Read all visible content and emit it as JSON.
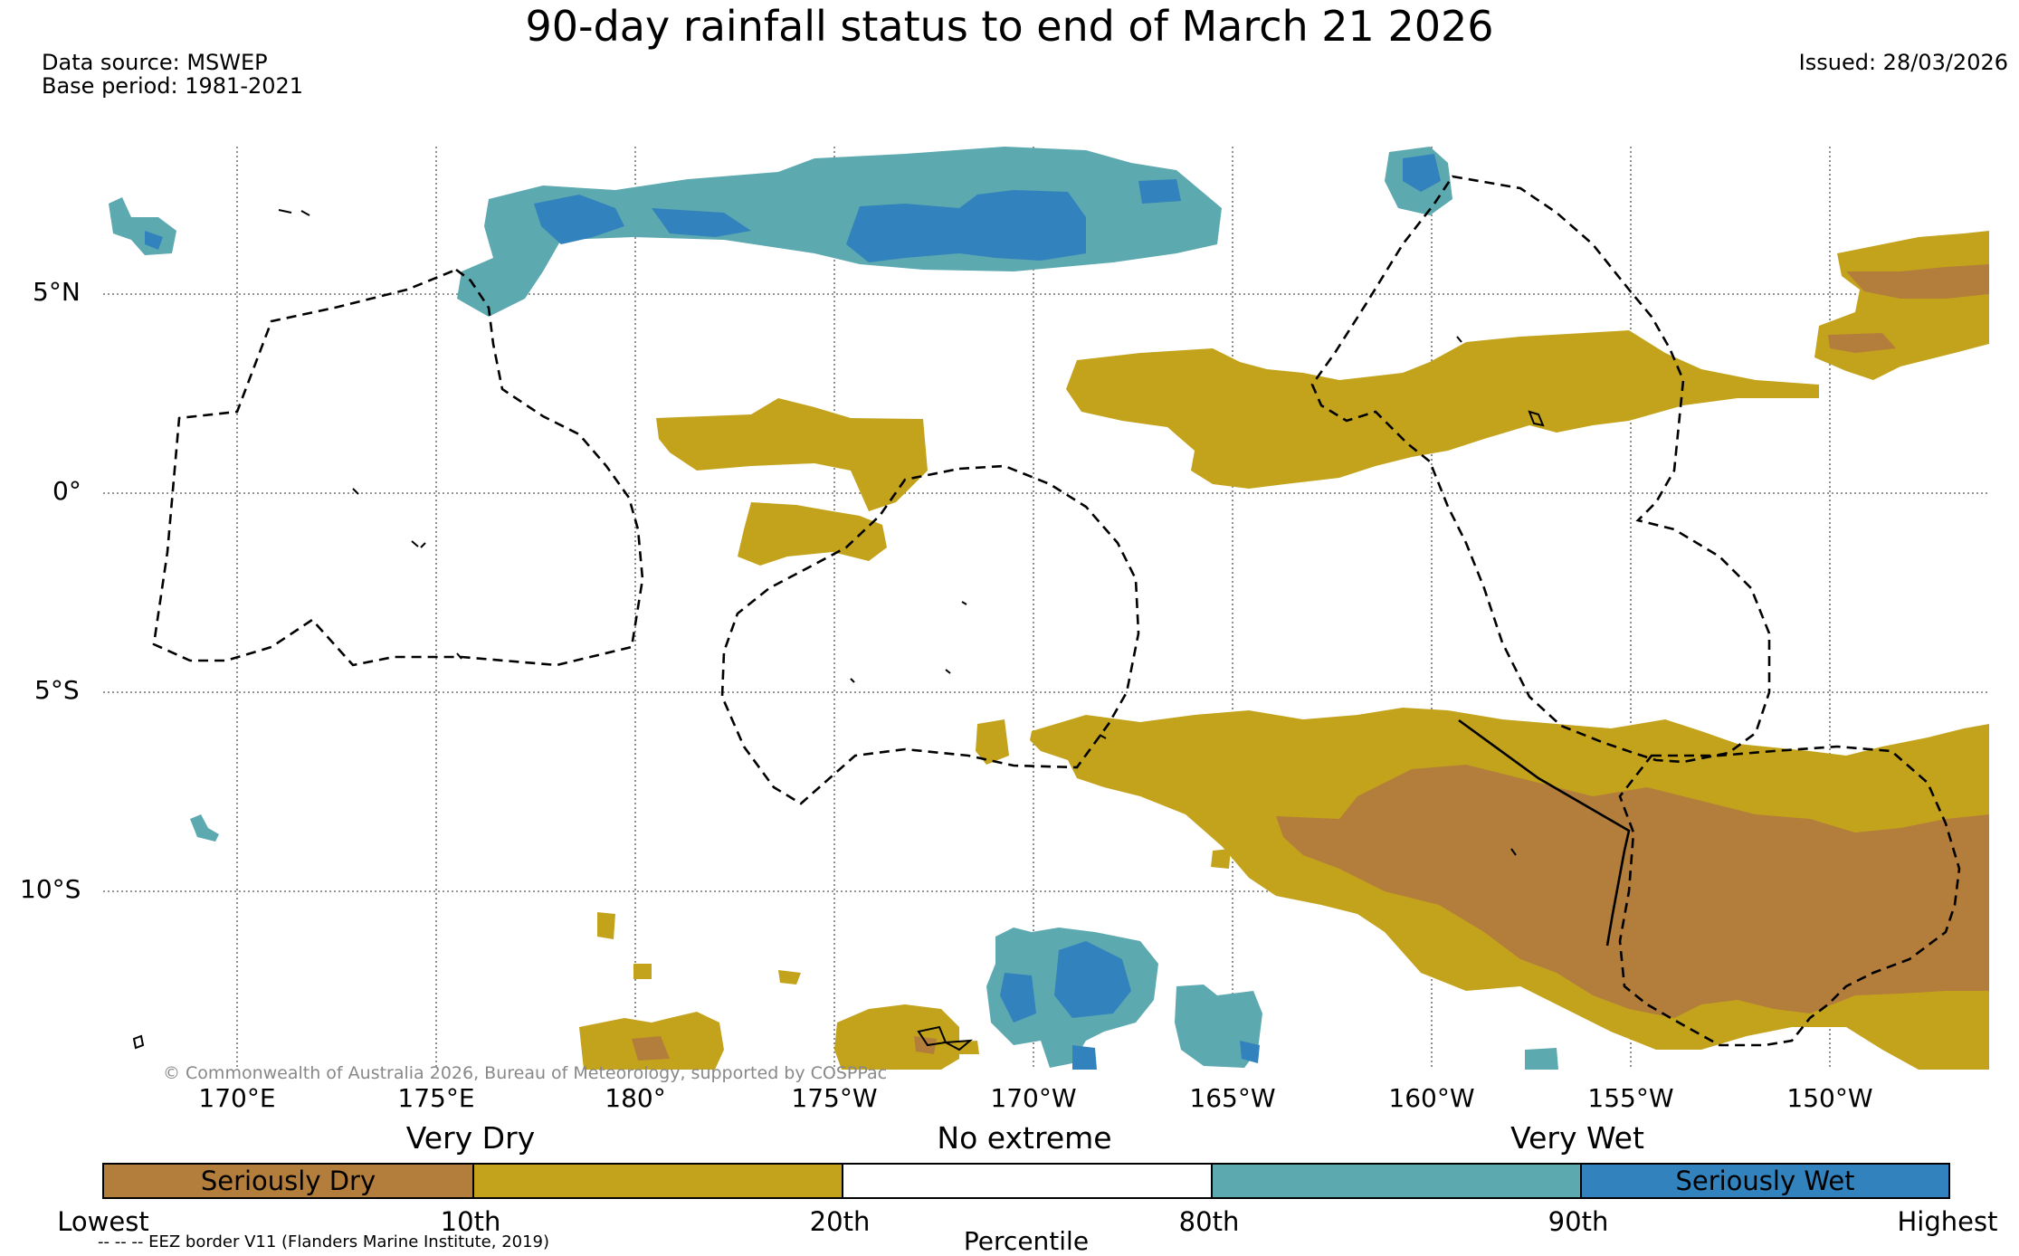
{
  "title": "90-day rainfall status to end of March 21 2026",
  "data_source": "Data source: MSWEP",
  "base_period": "Base period: 1981-2021",
  "issued": "Issued: 28/03/2026",
  "copyright": "© Commonwealth of Australia 2026, Bureau of Meteorology, supported by COSPPac",
  "eez_note": "-- -- -- EEZ border V11 (Flanders Marine Institute, 2019)",
  "map": {
    "lon_labels": [
      "170°E",
      "175°E",
      "180°",
      "175°W",
      "170°W",
      "165°W",
      "160°W",
      "155°W",
      "150°W"
    ],
    "lat_labels": [
      "5°N",
      "0°",
      "5°S",
      "10°S"
    ]
  },
  "legend": {
    "category_very_dry": "Very Dry",
    "category_no_extreme": "No extreme",
    "category_very_wet": "Very Wet",
    "bins": [
      {
        "label": "Seriously Dry",
        "color": "#b37d3c"
      },
      {
        "label": "",
        "color": "#c4a31c"
      },
      {
        "label": "",
        "color": "#ffffff"
      },
      {
        "label": "",
        "color": "#5ca9af"
      },
      {
        "label": "Seriously Wet",
        "color": "#3282bd"
      }
    ],
    "ticks": [
      "Lowest",
      "10th",
      "20th",
      "80th",
      "90th",
      "Highest"
    ],
    "axis_label": "Percentile"
  },
  "colors": {
    "seriously_dry": "#b37d3c",
    "very_dry": "#c4a31c",
    "very_wet": "#5ca9af",
    "seriously_wet": "#3282bd"
  }
}
